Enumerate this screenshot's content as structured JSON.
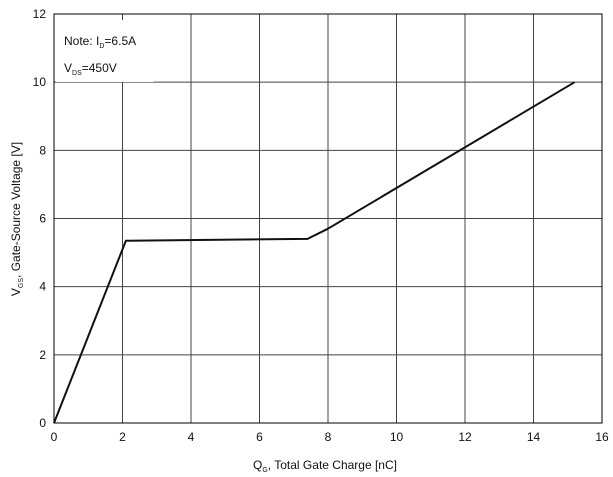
{
  "chart_data": {
    "type": "line",
    "xlabel": {
      "main": "Q",
      "sub": "G",
      "rest": ", Total Gate Charge [nC]"
    },
    "ylabel": {
      "main": "V",
      "sub": "GS",
      "rest": ", Gate-Source Voltage [V]"
    },
    "xlim": [
      0,
      16
    ],
    "ylim": [
      0,
      12
    ],
    "xticks": [
      0,
      2,
      4,
      6,
      8,
      10,
      12,
      14,
      16
    ],
    "yticks": [
      0,
      2,
      4,
      6,
      8,
      10,
      12
    ],
    "grid": true,
    "annotation": {
      "line1": {
        "prefix": "Note: I",
        "sub": "D",
        "suffix": "=6.5A"
      },
      "line2": {
        "prefix": "V",
        "sub": "DS",
        "suffix": "=450V"
      }
    },
    "series": [
      {
        "x": [
          0,
          2.1,
          7.4,
          8.0,
          15.2
        ],
        "y": [
          0,
          5.35,
          5.4,
          5.7,
          10.0
        ]
      }
    ]
  },
  "colors": {
    "line": "#111111",
    "grid": "#444444",
    "frame": "#000000"
  }
}
